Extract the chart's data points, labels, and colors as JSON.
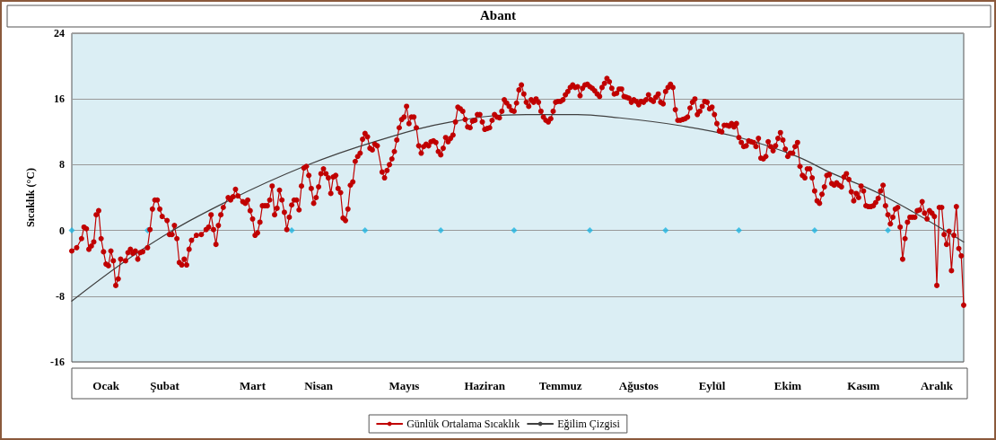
{
  "chart_data": {
    "type": "line",
    "title": "Abant",
    "ylabel": "Sıcaklık (°C)",
    "categories": [
      null,
      null,
      null,
      null,
      null,
      null,
      null,
      null,
      null,
      null,
      null,
      null,
      null,
      null,
      "Ocak",
      null,
      null,
      null,
      null,
      null,
      null,
      null,
      null,
      null,
      null,
      null,
      null,
      null,
      null,
      null,
      null,
      null,
      null,
      null,
      null,
      null,
      null,
      null,
      "Şubat",
      null,
      null,
      null,
      null,
      null,
      null,
      null,
      null,
      null,
      null,
      null,
      null,
      null,
      null,
      null,
      null,
      null,
      null,
      null,
      null,
      null,
      null,
      null,
      null,
      null,
      null,
      null,
      null,
      null,
      null,
      null,
      null,
      null,
      null,
      null,
      "Mart",
      null,
      null,
      null,
      null,
      null,
      null,
      null,
      null,
      null,
      null,
      null,
      null,
      null,
      null,
      null,
      null,
      null,
      null,
      null,
      null,
      null,
      null,
      null,
      null,
      null,
      null,
      "Nisan",
      null,
      null,
      null,
      null,
      null,
      null,
      null,
      null,
      null,
      null,
      null,
      null,
      null,
      null,
      null,
      null,
      null,
      null,
      null,
      null,
      null,
      null,
      null,
      null,
      null,
      null,
      null,
      null,
      null,
      null,
      null,
      null,
      null,
      null,
      "Mayıs",
      null,
      null,
      null,
      null,
      null,
      null,
      null,
      null,
      null,
      null,
      null,
      null,
      null,
      null,
      null,
      null,
      null,
      null,
      null,
      null,
      null,
      null,
      null,
      null,
      null,
      null,
      null,
      null,
      null,
      null,
      null,
      null,
      "Haziran",
      null,
      null,
      null,
      null,
      null,
      null,
      null,
      null,
      null,
      null,
      null,
      null,
      null,
      null,
      null,
      null,
      null,
      null,
      null,
      null,
      null,
      null,
      null,
      null,
      null,
      null,
      null,
      null,
      null,
      null,
      "Temmuz",
      null,
      null,
      null,
      null,
      null,
      null,
      null,
      null,
      null,
      null,
      null,
      null,
      null,
      null,
      null,
      null,
      null,
      null,
      null,
      null,
      null,
      null,
      null,
      null,
      null,
      null,
      null,
      null,
      null,
      null,
      null,
      "Ağustos",
      null,
      null,
      null,
      null,
      null,
      null,
      null,
      null,
      null,
      null,
      null,
      null,
      null,
      null,
      null,
      null,
      null,
      null,
      null,
      null,
      null,
      null,
      null,
      null,
      null,
      null,
      null,
      null,
      null,
      "Eylül",
      null,
      null,
      null,
      null,
      null,
      null,
      null,
      null,
      null,
      null,
      null,
      null,
      null,
      null,
      null,
      null,
      null,
      null,
      null,
      null,
      null,
      null,
      null,
      null,
      null,
      null,
      null,
      null,
      null,
      null,
      "Ekim",
      null,
      null,
      null,
      null,
      null,
      null,
      null,
      null,
      null,
      null,
      null,
      null,
      null,
      null,
      null,
      null,
      null,
      null,
      null,
      null,
      null,
      null,
      null,
      null,
      null,
      null,
      null,
      null,
      null,
      null,
      "Kasım",
      null,
      null,
      null,
      null,
      null,
      null,
      null,
      null,
      null,
      null,
      null,
      null,
      null,
      null,
      null,
      null,
      null,
      null,
      null,
      null,
      null,
      null,
      null,
      null,
      null,
      null,
      null,
      null,
      null,
      "Aralık",
      null,
      null,
      null,
      null,
      null,
      null,
      null,
      null,
      null,
      null,
      null
    ],
    "ylim": [
      -16,
      24
    ],
    "yticks": [
      -16,
      -8,
      0,
      8,
      16,
      24
    ],
    "grid": "y",
    "legend": "bottom",
    "line_style": "solid",
    "series": [
      {
        "name": "Günlük Ortalama Sıcaklık",
        "marker": "circle",
        "color": "#c00000",
        "values": [
          -2.5,
          null,
          -2.1,
          null,
          -1,
          0.4,
          0.2,
          -2.3,
          -1.9,
          -1.4,
          1.9,
          2.4,
          -1,
          -2.6,
          -4.1,
          -4.3,
          -2.5,
          -3.7,
          -6.7,
          -5.9,
          -3.5,
          null,
          -3.7,
          -2.7,
          -2.3,
          -2.8,
          -2.5,
          -3.5,
          -2.7,
          -2.6,
          null,
          -2.1,
          0.1,
          2.6,
          3.7,
          3.7,
          2.6,
          1.7,
          null,
          1.2,
          -0.5,
          -0.5,
          0.6,
          -1,
          -3.9,
          -4.2,
          -3.5,
          -4.2,
          -2.3,
          -1.2,
          null,
          -0.6,
          null,
          -0.5,
          null,
          0.1,
          0.4,
          1.9,
          0.1,
          -1.7,
          0.6,
          1.9,
          2.8,
          null,
          4.0,
          3.7,
          4.1,
          5.0,
          4.2,
          null,
          3.5,
          3.3,
          3.7,
          2.4,
          1.4,
          -0.6,
          -0.3,
          1.0,
          3.0,
          3.0,
          3.0,
          3.7,
          5.4,
          1.9,
          2.7,
          4.9,
          3.7,
          2.2,
          0.1,
          1.6,
          3.1,
          3.7,
          3.7,
          2.5,
          5.4,
          7.6,
          7.8,
          6.7,
          5.1,
          3.3,
          4.0,
          5.3,
          6.9,
          7.5,
          6.9,
          6.4,
          4.5,
          6.5,
          6.7,
          5.1,
          4.6,
          1.5,
          1.2,
          2.6,
          5.5,
          5.9,
          8.4,
          9.0,
          9.4,
          11.1,
          11.8,
          11.4,
          10.0,
          9.8,
          10.5,
          10.3,
          null,
          7.1,
          6.4,
          7.3,
          8.0,
          8.7,
          9.6,
          11.0,
          12.5,
          13.5,
          13.8,
          15.1,
          13.0,
          13.8,
          13.8,
          12.5,
          10.3,
          9.4,
          10.2,
          10.5,
          10.3,
          10.8,
          10.9,
          10.7,
          9.6,
          9.2,
          10.0,
          11.3,
          10.8,
          11.2,
          11.6,
          13.2,
          15.0,
          14.8,
          14.5,
          13.5,
          12.6,
          12.5,
          13.3,
          13.4,
          14.1,
          14.1,
          13.2,
          12.3,
          12.4,
          12.5,
          13.4,
          14.1,
          13.8,
          13.7,
          14.5,
          15.9,
          15.5,
          15.1,
          14.6,
          14.5,
          15.5,
          17.1,
          17.7,
          16.6,
          15.6,
          15.1,
          15.9,
          15.6,
          16.0,
          15.6,
          14.5,
          13.8,
          13.4,
          13.2,
          13.6,
          14.5,
          15.6,
          15.7,
          15.7,
          15.9,
          16.5,
          16.9,
          17.4,
          17.7,
          17.4,
          17.5,
          16.4,
          17.3,
          17.7,
          17.8,
          17.5,
          17.3,
          17.0,
          16.6,
          16.3,
          17.4,
          17.9,
          18.5,
          18.1,
          17.3,
          16.6,
          16.7,
          17.2,
          17.2,
          16.3,
          16.2,
          16.1,
          15.6,
          15.9,
          15.7,
          15.3,
          15.7,
          15.6,
          15.9,
          16.5,
          15.9,
          15.7,
          16.2,
          16.6,
          15.6,
          15.4,
          16.9,
          17.4,
          17.8,
          17.4,
          14.7,
          13.4,
          13.4,
          13.5,
          13.6,
          13.8,
          14.9,
          15.6,
          16.0,
          14.1,
          14.5,
          15.1,
          15.7,
          15.6,
          14.8,
          15.0,
          14.1,
          13.0,
          12.1,
          12.0,
          12.8,
          12.8,
          12.7,
          13.0,
          12.6,
          13.0,
          11.3,
          10.7,
          10.2,
          10.3,
          10.9,
          10.8,
          10.7,
          10.2,
          11.2,
          8.8,
          8.7,
          9.0,
          10.8,
          10.2,
          9.7,
          10.3,
          11.2,
          11.9,
          11.0,
          9.9,
          9.0,
          9.4,
          9.4,
          10.2,
          10.7,
          7.8,
          6.7,
          6.4,
          7.5,
          7.5,
          6.4,
          4.8,
          3.6,
          3.3,
          4.4,
          5.3,
          6.7,
          6.8,
          5.7,
          5.5,
          5.8,
          5.5,
          5.3,
          6.5,
          6.9,
          6.2,
          4.7,
          3.6,
          4.5,
          4.0,
          5.4,
          4.8,
          3.0,
          2.9,
          2.9,
          3.0,
          3.4,
          3.9,
          4.8,
          5.5,
          3.0,
          1.9,
          0.8,
          1.6,
          2.6,
          2.8,
          0.4,
          -3.5,
          -1.0,
          1.0,
          1.6,
          1.6,
          1.6,
          2.4,
          2.5,
          3.5,
          2.1,
          1.4,
          2.4,
          2.1,
          1.7,
          -6.7,
          2.8,
          2.8,
          -0.5,
          -1.7,
          -0.1,
          -4.9,
          -0.6,
          2.9,
          -2.2,
          -3.1,
          -9.1
        ]
      },
      {
        "name": "Eğilim Çizgisi",
        "marker": "none",
        "color": "#404040",
        "values": [
          -8.6,
          null,
          null,
          null,
          null,
          null,
          null,
          null,
          null,
          null,
          null,
          null,
          null,
          null,
          null,
          null,
          null,
          null,
          null,
          null,
          null,
          null,
          null,
          null,
          null,
          null,
          null,
          null,
          null,
          null,
          null,
          -1.9,
          null,
          null,
          null,
          null,
          null,
          null,
          null,
          null,
          null,
          null,
          null,
          null,
          null,
          null,
          null,
          null,
          null,
          null,
          null,
          null,
          null,
          null,
          null,
          null,
          null,
          null,
          null,
          null,
          null,
          null,
          3.3,
          null,
          null,
          null,
          null,
          null,
          null,
          null,
          null,
          null,
          null,
          null,
          null,
          null,
          null,
          null,
          null,
          null,
          null,
          null,
          null,
          null,
          null,
          null,
          null,
          null,
          null,
          null,
          null,
          null,
          null,
          null,
          null,
          null,
          7.9,
          null,
          null,
          null,
          null,
          null,
          null,
          null,
          null,
          null,
          null,
          null,
          null,
          null,
          null,
          null,
          null,
          null,
          null,
          null,
          null,
          null,
          null,
          null,
          null,
          null,
          null,
          null,
          null,
          10.9,
          null,
          null,
          null,
          null,
          null,
          null,
          null,
          null,
          null,
          null,
          null,
          null,
          null,
          null,
          null,
          null,
          null,
          null,
          null,
          null,
          null,
          null,
          null,
          null,
          null,
          null,
          null,
          null,
          null,
          13.2,
          null,
          null,
          null,
          null,
          null,
          null,
          null,
          null,
          null,
          null,
          null,
          null,
          null,
          null,
          null,
          null,
          null,
          null,
          null,
          null,
          null,
          null,
          null,
          null,
          null,
          null,
          null,
          null,
          null,
          null,
          14.1,
          null,
          null,
          null,
          null,
          null,
          null,
          null,
          null,
          null,
          null,
          null,
          null,
          null,
          null,
          null,
          null,
          null,
          null,
          null,
          null,
          14.1,
          null,
          null,
          null,
          null,
          null,
          null,
          null,
          null,
          null,
          null,
          null,
          null,
          null,
          13.8,
          null,
          null,
          null,
          null,
          null,
          null,
          null,
          null,
          null,
          null,
          null,
          null,
          null,
          null,
          null,
          null,
          null,
          null,
          null,
          null,
          null,
          null,
          null,
          null,
          null,
          null,
          12.8,
          null,
          null,
          null,
          null,
          null,
          null,
          null,
          null,
          null,
          null,
          null,
          null,
          null,
          null,
          null,
          null,
          null,
          null,
          null,
          null,
          null,
          null,
          null,
          11.4,
          null,
          null,
          null,
          null,
          null,
          null,
          null,
          null,
          null,
          null,
          null,
          null,
          null,
          null,
          null,
          null,
          null,
          null,
          null,
          null,
          null,
          null,
          null,
          9.1,
          null,
          null,
          null,
          null,
          null,
          null,
          null,
          null,
          null,
          null,
          null,
          null,
          null,
          7.1,
          null,
          null,
          null,
          null,
          null,
          null,
          null,
          null,
          null,
          null,
          null,
          null,
          null,
          null,
          null,
          null,
          null,
          null,
          null,
          null,
          4.4,
          null,
          null,
          null,
          null,
          null,
          null,
          null,
          null,
          null,
          null,
          null,
          null,
          null,
          null,
          null,
          null,
          null,
          null,
          null,
          null,
          null,
          null,
          null,
          null,
          null,
          null,
          null,
          null,
          null,
          null,
          null,
          null,
          null,
          -1.4
        ]
      },
      {
        "type": "scatter",
        "marker": "diamond",
        "color": "#1fb4e0",
        "values": [
          0,
          null,
          null,
          null,
          null,
          null,
          null,
          null,
          null,
          null,
          null,
          null,
          null,
          null,
          null,
          null,
          null,
          null,
          null,
          null,
          null,
          null,
          null,
          null,
          null,
          null,
          null,
          null,
          null,
          null,
          null,
          0,
          null,
          null,
          null,
          null,
          null,
          null,
          null,
          null,
          null,
          null,
          null,
          null,
          null,
          null,
          null,
          null,
          null,
          null,
          null,
          null,
          null,
          null,
          null,
          null,
          null,
          null,
          null,
          null,
          null,
          null,
          null,
          null,
          null,
          null,
          null,
          null,
          null,
          null,
          null,
          null,
          null,
          null,
          null,
          null,
          null,
          null,
          null,
          null,
          null,
          null,
          null,
          null,
          null,
          null,
          null,
          null,
          null,
          null,
          0,
          null,
          null,
          null,
          null,
          null,
          null,
          null,
          null,
          null,
          null,
          null,
          null,
          null,
          null,
          null,
          null,
          null,
          null,
          null,
          null,
          null,
          null,
          null,
          null,
          null,
          null,
          null,
          null,
          null,
          0,
          null,
          null,
          null,
          null,
          null,
          null,
          null,
          null,
          null,
          null,
          null,
          null,
          null,
          null,
          null,
          null,
          null,
          null,
          null,
          null,
          null,
          null,
          null,
          null,
          null,
          null,
          null,
          null,
          null,
          null,
          0,
          null,
          null,
          null,
          null,
          null,
          null,
          null,
          null,
          null,
          null,
          null,
          null,
          null,
          null,
          null,
          null,
          null,
          null,
          null,
          null,
          null,
          null,
          null,
          null,
          null,
          null,
          null,
          null,
          null,
          0,
          null,
          null,
          null,
          null,
          null,
          null,
          null,
          null,
          null,
          null,
          null,
          null,
          null,
          null,
          null,
          null,
          null,
          null,
          null,
          null,
          null,
          null,
          null,
          null,
          null,
          null,
          null,
          null,
          null,
          null,
          0,
          null,
          null,
          null,
          null,
          null,
          null,
          null,
          null,
          null,
          null,
          null,
          null,
          null,
          null,
          null,
          null,
          null,
          null,
          null,
          null,
          null,
          null,
          null,
          null,
          null,
          null,
          null,
          null,
          null,
          null,
          0,
          null,
          null,
          null,
          null,
          null,
          null,
          null,
          null,
          null,
          null,
          null,
          null,
          null,
          null,
          null,
          null,
          null,
          null,
          null,
          null,
          null,
          null,
          null,
          null,
          null,
          null,
          null,
          null,
          null,
          0,
          null,
          null,
          null,
          null,
          null,
          null,
          null,
          null,
          null,
          null,
          null,
          null,
          null,
          null,
          null,
          null,
          null,
          null,
          null,
          null,
          null,
          null,
          null,
          null,
          null,
          null,
          null,
          null,
          null,
          null,
          0,
          null,
          null,
          null,
          null,
          null,
          null,
          null,
          null,
          null,
          null,
          null,
          null,
          null,
          null,
          null,
          null,
          null,
          null,
          null,
          null,
          null,
          null,
          null,
          null,
          null,
          null,
          null,
          null,
          null,
          0,
          null,
          null,
          null,
          null,
          null,
          null,
          null,
          null,
          null,
          null,
          null,
          null,
          null,
          null,
          null,
          null,
          null,
          null,
          null,
          null,
          null,
          null,
          null,
          null,
          null,
          null,
          null,
          null,
          null,
          null,
          null
        ]
      }
    ]
  }
}
